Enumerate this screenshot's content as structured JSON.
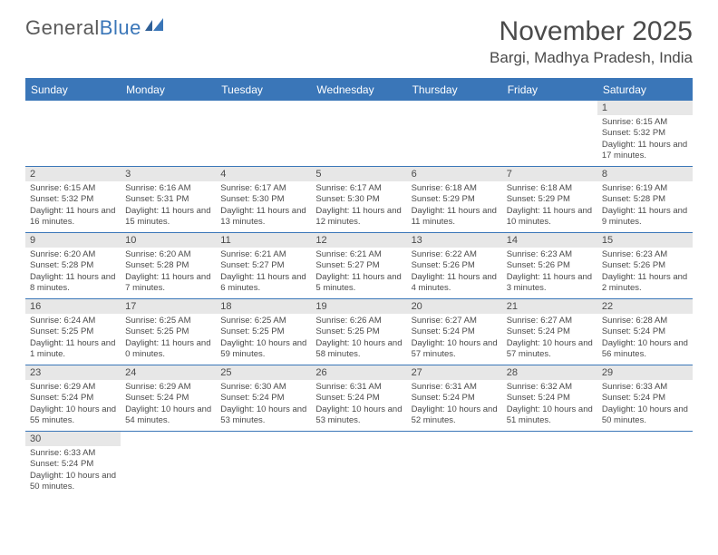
{
  "brand": {
    "part1": "General",
    "part2": "Blue"
  },
  "title": "November 2025",
  "location": "Bargi, Madhya Pradesh, India",
  "colors": {
    "header_bg": "#3a76b8",
    "daynum_bg": "#e7e7e7",
    "text": "#4a4a4a",
    "border": "#3a76b8",
    "white": "#ffffff"
  },
  "day_names": [
    "Sunday",
    "Monday",
    "Tuesday",
    "Wednesday",
    "Thursday",
    "Friday",
    "Saturday"
  ],
  "weeks": [
    [
      null,
      null,
      null,
      null,
      null,
      null,
      {
        "n": "1",
        "sr": "6:15 AM",
        "ss": "5:32 PM",
        "dl": "11 hours and 17 minutes."
      }
    ],
    [
      {
        "n": "2",
        "sr": "6:15 AM",
        "ss": "5:32 PM",
        "dl": "11 hours and 16 minutes."
      },
      {
        "n": "3",
        "sr": "6:16 AM",
        "ss": "5:31 PM",
        "dl": "11 hours and 15 minutes."
      },
      {
        "n": "4",
        "sr": "6:17 AM",
        "ss": "5:30 PM",
        "dl": "11 hours and 13 minutes."
      },
      {
        "n": "5",
        "sr": "6:17 AM",
        "ss": "5:30 PM",
        "dl": "11 hours and 12 minutes."
      },
      {
        "n": "6",
        "sr": "6:18 AM",
        "ss": "5:29 PM",
        "dl": "11 hours and 11 minutes."
      },
      {
        "n": "7",
        "sr": "6:18 AM",
        "ss": "5:29 PM",
        "dl": "11 hours and 10 minutes."
      },
      {
        "n": "8",
        "sr": "6:19 AM",
        "ss": "5:28 PM",
        "dl": "11 hours and 9 minutes."
      }
    ],
    [
      {
        "n": "9",
        "sr": "6:20 AM",
        "ss": "5:28 PM",
        "dl": "11 hours and 8 minutes."
      },
      {
        "n": "10",
        "sr": "6:20 AM",
        "ss": "5:28 PM",
        "dl": "11 hours and 7 minutes."
      },
      {
        "n": "11",
        "sr": "6:21 AM",
        "ss": "5:27 PM",
        "dl": "11 hours and 6 minutes."
      },
      {
        "n": "12",
        "sr": "6:21 AM",
        "ss": "5:27 PM",
        "dl": "11 hours and 5 minutes."
      },
      {
        "n": "13",
        "sr": "6:22 AM",
        "ss": "5:26 PM",
        "dl": "11 hours and 4 minutes."
      },
      {
        "n": "14",
        "sr": "6:23 AM",
        "ss": "5:26 PM",
        "dl": "11 hours and 3 minutes."
      },
      {
        "n": "15",
        "sr": "6:23 AM",
        "ss": "5:26 PM",
        "dl": "11 hours and 2 minutes."
      }
    ],
    [
      {
        "n": "16",
        "sr": "6:24 AM",
        "ss": "5:25 PM",
        "dl": "11 hours and 1 minute."
      },
      {
        "n": "17",
        "sr": "6:25 AM",
        "ss": "5:25 PM",
        "dl": "11 hours and 0 minutes."
      },
      {
        "n": "18",
        "sr": "6:25 AM",
        "ss": "5:25 PM",
        "dl": "10 hours and 59 minutes."
      },
      {
        "n": "19",
        "sr": "6:26 AM",
        "ss": "5:25 PM",
        "dl": "10 hours and 58 minutes."
      },
      {
        "n": "20",
        "sr": "6:27 AM",
        "ss": "5:24 PM",
        "dl": "10 hours and 57 minutes."
      },
      {
        "n": "21",
        "sr": "6:27 AM",
        "ss": "5:24 PM",
        "dl": "10 hours and 57 minutes."
      },
      {
        "n": "22",
        "sr": "6:28 AM",
        "ss": "5:24 PM",
        "dl": "10 hours and 56 minutes."
      }
    ],
    [
      {
        "n": "23",
        "sr": "6:29 AM",
        "ss": "5:24 PM",
        "dl": "10 hours and 55 minutes."
      },
      {
        "n": "24",
        "sr": "6:29 AM",
        "ss": "5:24 PM",
        "dl": "10 hours and 54 minutes."
      },
      {
        "n": "25",
        "sr": "6:30 AM",
        "ss": "5:24 PM",
        "dl": "10 hours and 53 minutes."
      },
      {
        "n": "26",
        "sr": "6:31 AM",
        "ss": "5:24 PM",
        "dl": "10 hours and 53 minutes."
      },
      {
        "n": "27",
        "sr": "6:31 AM",
        "ss": "5:24 PM",
        "dl": "10 hours and 52 minutes."
      },
      {
        "n": "28",
        "sr": "6:32 AM",
        "ss": "5:24 PM",
        "dl": "10 hours and 51 minutes."
      },
      {
        "n": "29",
        "sr": "6:33 AM",
        "ss": "5:24 PM",
        "dl": "10 hours and 50 minutes."
      }
    ],
    [
      {
        "n": "30",
        "sr": "6:33 AM",
        "ss": "5:24 PM",
        "dl": "10 hours and 50 minutes."
      },
      null,
      null,
      null,
      null,
      null,
      null
    ]
  ],
  "labels": {
    "sunrise": "Sunrise:",
    "sunset": "Sunset:",
    "daylight": "Daylight:"
  }
}
